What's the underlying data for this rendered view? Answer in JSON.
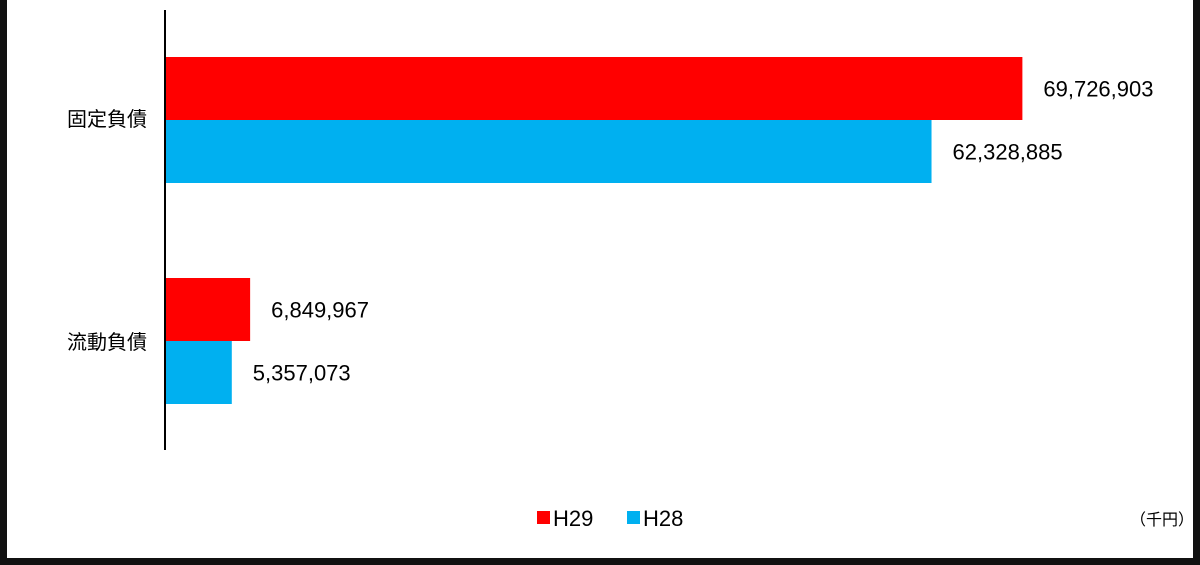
{
  "chart_data": {
    "type": "bar",
    "orientation": "horizontal",
    "categories": [
      "固定負債",
      "流動負債"
    ],
    "series": [
      {
        "name": "H29",
        "color": "#ff0000",
        "values": [
          69726903,
          6849967
        ]
      },
      {
        "name": "H28",
        "color": "#00b0f0",
        "values": [
          62328885,
          5357073
        ]
      }
    ],
    "value_labels": [
      [
        "69,726,903",
        "6,849,967"
      ],
      [
        "62,328,885",
        "5,357,073"
      ]
    ],
    "xlim": [
      0,
      78000000
    ],
    "grid": false,
    "legend_position": "bottom",
    "unit": "（千円）"
  }
}
